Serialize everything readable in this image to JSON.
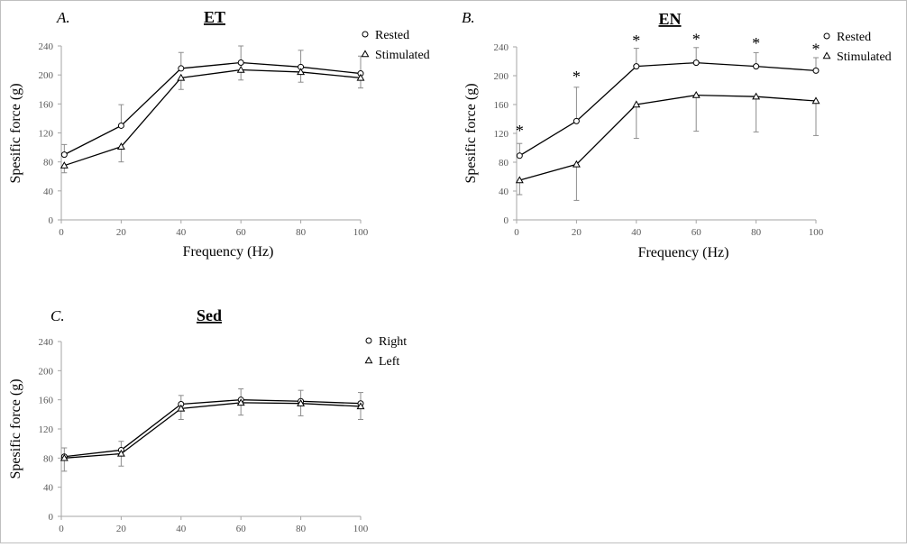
{
  "chart_data": [
    {
      "type": "line",
      "panel": "A.",
      "title": "ET",
      "xlabel": "Frequency (Hz)",
      "ylabel": "Spesific force (g)",
      "xlim": [
        0,
        100
      ],
      "ylim": [
        0,
        240
      ],
      "xticks": [
        0,
        20,
        40,
        60,
        80,
        100
      ],
      "yticks": [
        0,
        40,
        80,
        120,
        160,
        200,
        240
      ],
      "legend_position": "top-right",
      "grid": false,
      "series": [
        {
          "name": "Rested",
          "marker": "circle",
          "x": [
            1,
            20,
            40,
            60,
            80,
            100
          ],
          "y": [
            90,
            130,
            209,
            217,
            211,
            202
          ],
          "err_up": [
            14,
            29,
            22,
            23,
            23,
            24
          ]
        },
        {
          "name": "Stimulated",
          "marker": "triangle",
          "x": [
            1,
            20,
            40,
            60,
            80,
            100
          ],
          "y": [
            75,
            101,
            196,
            207,
            204,
            196
          ],
          "err_down": [
            10,
            21,
            16,
            14,
            14,
            14
          ]
        }
      ],
      "significance": []
    },
    {
      "type": "line",
      "panel": "B.",
      "title": "EN",
      "xlabel": "Frequency (Hz)",
      "ylabel": "Spesific force (g)",
      "xlim": [
        0,
        100
      ],
      "ylim": [
        0,
        240
      ],
      "xticks": [
        0,
        20,
        40,
        60,
        80,
        100
      ],
      "yticks": [
        0,
        40,
        80,
        120,
        160,
        200,
        240
      ],
      "legend_position": "top-right",
      "grid": false,
      "series": [
        {
          "name": "Rested",
          "marker": "circle",
          "x": [
            1,
            20,
            40,
            60,
            80,
            100
          ],
          "y": [
            89,
            137,
            213,
            218,
            213,
            207
          ],
          "err_up": [
            17,
            47,
            25,
            21,
            19,
            18
          ]
        },
        {
          "name": "Stimulated",
          "marker": "triangle",
          "x": [
            1,
            20,
            40,
            60,
            80,
            100
          ],
          "y": [
            55,
            77,
            160,
            173,
            171,
            165
          ],
          "err_down": [
            20,
            50,
            47,
            50,
            49,
            48
          ]
        }
      ],
      "significance": [
        {
          "x": 1,
          "y": 125,
          "label": "*"
        },
        {
          "x": 20,
          "y": 200,
          "label": "*"
        },
        {
          "x": 40,
          "y": 250,
          "label": "*"
        },
        {
          "x": 60,
          "y": 252,
          "label": "*"
        },
        {
          "x": 80,
          "y": 246,
          "label": "*"
        },
        {
          "x": 100,
          "y": 238,
          "label": "*"
        }
      ]
    },
    {
      "type": "line",
      "panel": "C.",
      "title": "Sed",
      "xlabel": "",
      "ylabel": "Spesific force (g)",
      "xlim": [
        0,
        100
      ],
      "ylim": [
        0,
        240
      ],
      "xticks": [
        0,
        20,
        40,
        60,
        80,
        100
      ],
      "yticks": [
        0,
        40,
        80,
        120,
        160,
        200,
        240
      ],
      "legend_position": "top-right",
      "grid": false,
      "series": [
        {
          "name": "Right",
          "marker": "circle",
          "x": [
            1,
            20,
            40,
            60,
            80,
            100
          ],
          "y": [
            82,
            91,
            154,
            160,
            158,
            155
          ],
          "err_up": [
            12,
            12,
            12,
            15,
            15,
            15
          ]
        },
        {
          "name": "Left",
          "marker": "triangle",
          "x": [
            1,
            20,
            40,
            60,
            80,
            100
          ],
          "y": [
            80,
            86,
            148,
            156,
            155,
            151
          ],
          "err_down": [
            18,
            17,
            15,
            17,
            17,
            18
          ]
        }
      ],
      "significance": []
    }
  ]
}
